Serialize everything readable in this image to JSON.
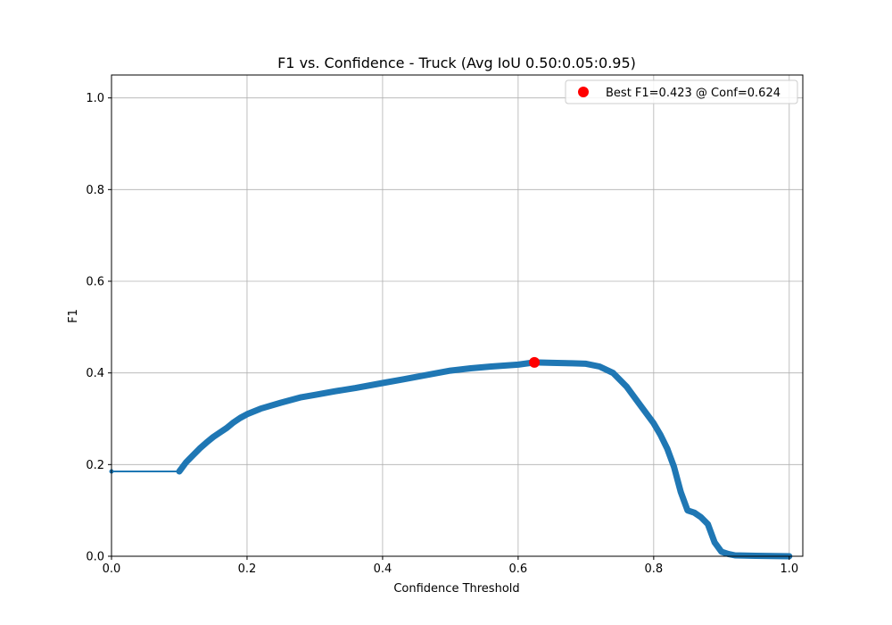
{
  "chart_data": {
    "type": "line",
    "title": "F1 vs. Confidence - Truck (Avg IoU 0.50:0.05:0.95)",
    "xlabel": "Confidence Threshold",
    "ylabel": "F1",
    "xlim": [
      0.0,
      1.02
    ],
    "ylim": [
      0.0,
      1.05
    ],
    "xticks": [
      0.0,
      0.2,
      0.4,
      0.6,
      0.8,
      1.0
    ],
    "yticks": [
      0.0,
      0.2,
      0.4,
      0.6,
      0.8,
      1.0
    ],
    "xtick_labels": [
      "0.0",
      "0.2",
      "0.4",
      "0.6",
      "0.8",
      "1.0"
    ],
    "ytick_labels": [
      "0.0",
      "0.2",
      "0.4",
      "0.6",
      "0.8",
      "1.0"
    ],
    "grid": true,
    "legend_position": "top-right",
    "series": [
      {
        "color": "#1f77b4",
        "x": [
          0.0,
          0.1,
          0.11,
          0.12,
          0.13,
          0.14,
          0.15,
          0.16,
          0.17,
          0.18,
          0.19,
          0.2,
          0.22,
          0.25,
          0.28,
          0.3,
          0.33,
          0.36,
          0.4,
          0.43,
          0.46,
          0.5,
          0.53,
          0.56,
          0.6,
          0.624,
          0.65,
          0.68,
          0.7,
          0.72,
          0.74,
          0.76,
          0.78,
          0.8,
          0.81,
          0.82,
          0.83,
          0.84,
          0.85,
          0.86,
          0.87,
          0.88,
          0.89,
          0.9,
          0.91,
          0.92,
          0.95,
          1.0
        ],
        "y": [
          0.185,
          0.185,
          0.205,
          0.22,
          0.235,
          0.248,
          0.26,
          0.27,
          0.28,
          0.292,
          0.302,
          0.31,
          0.322,
          0.335,
          0.347,
          0.352,
          0.36,
          0.367,
          0.378,
          0.386,
          0.394,
          0.405,
          0.41,
          0.414,
          0.418,
          0.423,
          0.422,
          0.421,
          0.42,
          0.414,
          0.4,
          0.37,
          0.33,
          0.29,
          0.265,
          0.235,
          0.195,
          0.14,
          0.1,
          0.095,
          0.085,
          0.07,
          0.03,
          0.01,
          0.005,
          0.002,
          0.001,
          0.0
        ]
      }
    ],
    "best_point": {
      "x": 0.624,
      "y": 0.423,
      "color": "#ff0000",
      "label": "Best F1=0.423 @ Conf=0.624"
    }
  }
}
